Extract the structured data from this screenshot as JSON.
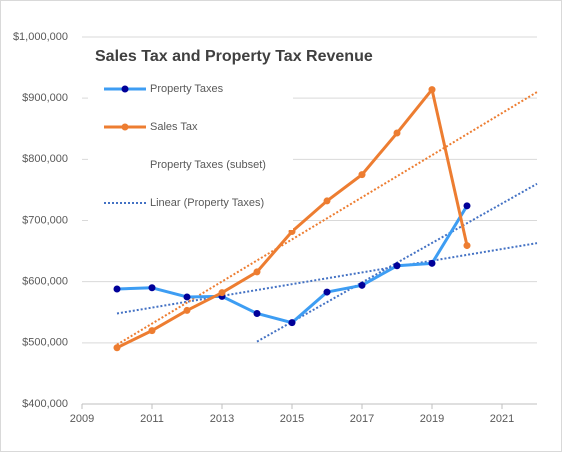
{
  "chart_data": {
    "type": "line",
    "title": "Sales Tax and Property Tax Revenue",
    "xlim": [
      2009,
      2022
    ],
    "xticks": [
      2009,
      2011,
      2013,
      2015,
      2017,
      2019,
      2021
    ],
    "ylim": [
      400000,
      1000000
    ],
    "yticks": [
      {
        "value": 400000,
        "label": "$400,000"
      },
      {
        "value": 500000,
        "label": "$500,000"
      },
      {
        "value": 600000,
        "label": "$600,000"
      },
      {
        "value": 700000,
        "label": "$700,000"
      },
      {
        "value": 800000,
        "label": "$800,000"
      },
      {
        "value": 900000,
        "label": "$900,000"
      },
      {
        "value": 1000000,
        "label": "$1,000,000"
      }
    ],
    "grid": true,
    "legend": "top-left",
    "series": [
      {
        "name": "Property Taxes",
        "color": "#3d9df3",
        "marker_color": "#000099",
        "x": [
          2010,
          2011,
          2012,
          2013,
          2014,
          2015,
          2016,
          2017,
          2018,
          2019,
          2020
        ],
        "values": [
          588000,
          590000,
          575000,
          576000,
          548000,
          533000,
          583000,
          594000,
          626000,
          630000,
          724000
        ]
      },
      {
        "name": "Sales Tax",
        "color": "#ed7d31",
        "marker_color": "#ed7d31",
        "x": [
          2010,
          2011,
          2012,
          2013,
          2014,
          2015,
          2016,
          2017,
          2018,
          2019,
          2020
        ],
        "values": [
          492000,
          520000,
          553000,
          582000,
          616000,
          682000,
          732000,
          775000,
          843000,
          914000,
          659000
        ]
      },
      {
        "name": "Property Taxes (subset)",
        "color": "none",
        "marker_color": "none",
        "x": [
          2014,
          2015,
          2016,
          2017,
          2018,
          2019,
          2020
        ],
        "values": [
          548000,
          533000,
          583000,
          594000,
          626000,
          630000,
          724000
        ]
      }
    ],
    "trendlines": [
      {
        "name": "Linear (Property Taxes)",
        "color": "#4472c4",
        "x": [
          2010,
          2022
        ],
        "values": [
          548000,
          663000
        ]
      },
      {
        "color": "#4472c4",
        "x": [
          2014,
          2022
        ],
        "values": [
          502000,
          760000
        ]
      },
      {
        "color": "#ed7d31",
        "x": [
          2010,
          2022
        ],
        "values": [
          497000,
          910000
        ]
      }
    ]
  }
}
